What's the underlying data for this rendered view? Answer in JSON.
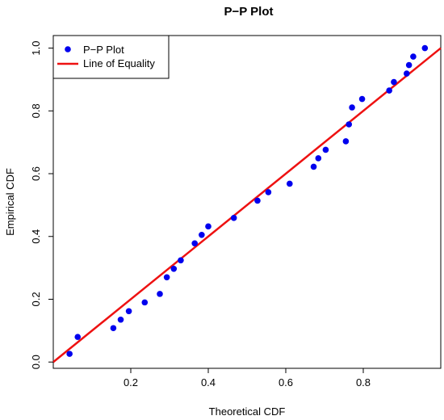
{
  "chart_data": {
    "type": "scatter",
    "title": "P−P Plot",
    "xlabel": "Theoretical CDF",
    "ylabel": "Empirical CDF",
    "xlim": [
      0.0,
      1.0
    ],
    "ylim": [
      -0.02,
      1.04
    ],
    "xticks": [
      0.2,
      0.4,
      0.6,
      0.8
    ],
    "xtick_labels": [
      "0.2",
      "0.4",
      "0.6",
      "0.8"
    ],
    "yticks": [
      0.0,
      0.2,
      0.4,
      0.6,
      0.8,
      1.0
    ],
    "ytick_labels": [
      "0.0",
      "0.2",
      "0.4",
      "0.6",
      "0.8",
      "1.0"
    ],
    "legend_position": "top-left",
    "series": [
      {
        "name": "P−P Plot",
        "kind": "points",
        "color": "#0000ee",
        "points": [
          {
            "x": 0.042,
            "y": 0.026
          },
          {
            "x": 0.063,
            "y": 0.08
          },
          {
            "x": 0.155,
            "y": 0.108
          },
          {
            "x": 0.174,
            "y": 0.135
          },
          {
            "x": 0.195,
            "y": 0.162
          },
          {
            "x": 0.236,
            "y": 0.19
          },
          {
            "x": 0.275,
            "y": 0.217
          },
          {
            "x": 0.293,
            "y": 0.27
          },
          {
            "x": 0.311,
            "y": 0.297
          },
          {
            "x": 0.329,
            "y": 0.324
          },
          {
            "x": 0.365,
            "y": 0.378
          },
          {
            "x": 0.383,
            "y": 0.405
          },
          {
            "x": 0.4,
            "y": 0.432
          },
          {
            "x": 0.466,
            "y": 0.459
          },
          {
            "x": 0.527,
            "y": 0.514
          },
          {
            "x": 0.555,
            "y": 0.541
          },
          {
            "x": 0.61,
            "y": 0.568
          },
          {
            "x": 0.672,
            "y": 0.622
          },
          {
            "x": 0.684,
            "y": 0.649
          },
          {
            "x": 0.703,
            "y": 0.676
          },
          {
            "x": 0.755,
            "y": 0.703
          },
          {
            "x": 0.763,
            "y": 0.757
          },
          {
            "x": 0.771,
            "y": 0.811
          },
          {
            "x": 0.797,
            "y": 0.838
          },
          {
            "x": 0.867,
            "y": 0.865
          },
          {
            "x": 0.879,
            "y": 0.892
          },
          {
            "x": 0.912,
            "y": 0.919
          },
          {
            "x": 0.918,
            "y": 0.946
          },
          {
            "x": 0.929,
            "y": 0.973
          },
          {
            "x": 0.959,
            "y": 1.0
          }
        ]
      },
      {
        "name": "Line of Equality",
        "kind": "line",
        "color": "#ee1111",
        "points": [
          {
            "x": 0.0,
            "y": 0.0
          },
          {
            "x": 1.0,
            "y": 1.0
          }
        ]
      }
    ]
  }
}
